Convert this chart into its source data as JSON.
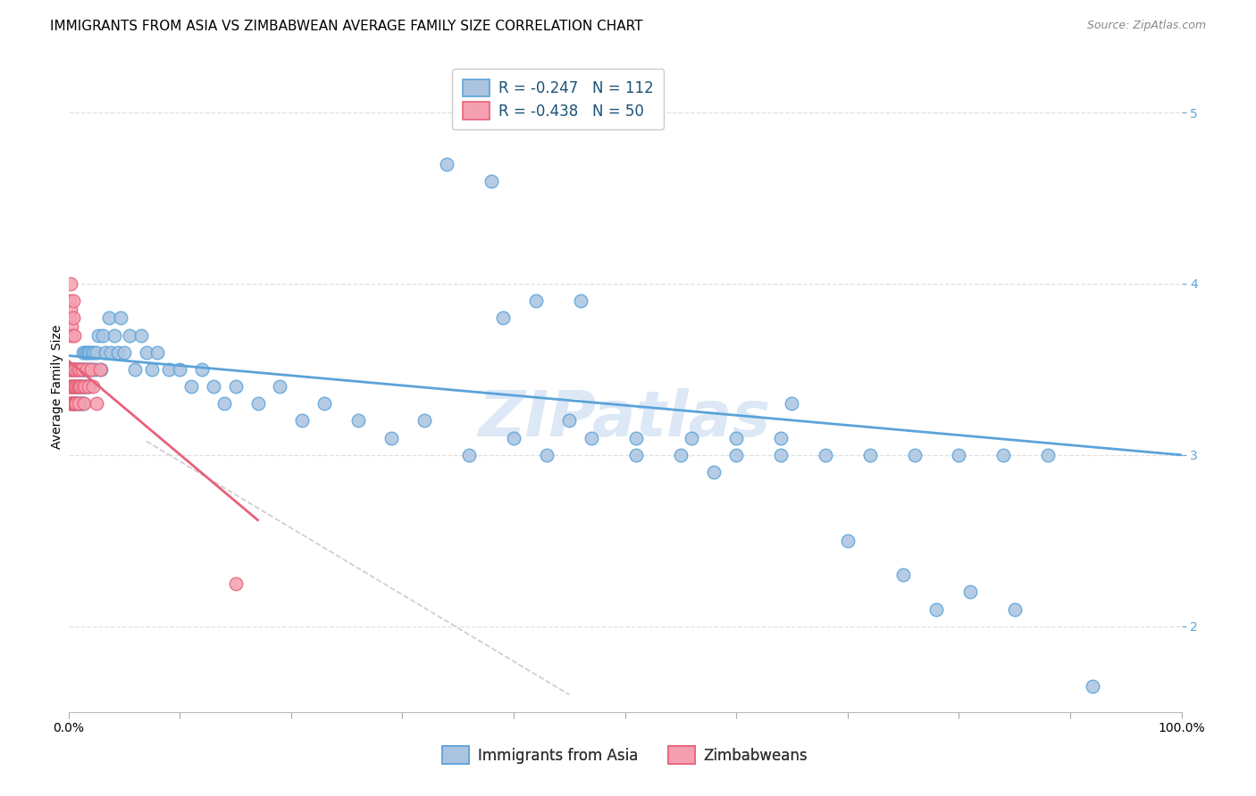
{
  "title": "IMMIGRANTS FROM ASIA VS ZIMBABWEAN AVERAGE FAMILY SIZE CORRELATION CHART",
  "source": "Source: ZipAtlas.com",
  "ylabel": "Average Family Size",
  "xlim": [
    0.0,
    1.0
  ],
  "ylim": [
    1.5,
    5.3
  ],
  "yticks": [
    2.0,
    3.0,
    4.0,
    5.0
  ],
  "xticks": [
    0.0,
    0.1,
    0.2,
    0.3,
    0.4,
    0.5,
    0.6,
    0.7,
    0.8,
    0.9,
    1.0
  ],
  "blue_scatter_x": [
    0.002,
    0.003,
    0.003,
    0.004,
    0.004,
    0.005,
    0.005,
    0.005,
    0.006,
    0.006,
    0.006,
    0.007,
    0.007,
    0.007,
    0.008,
    0.008,
    0.008,
    0.009,
    0.009,
    0.009,
    0.01,
    0.01,
    0.01,
    0.011,
    0.011,
    0.012,
    0.012,
    0.012,
    0.013,
    0.013,
    0.013,
    0.014,
    0.014,
    0.015,
    0.015,
    0.015,
    0.016,
    0.016,
    0.017,
    0.017,
    0.018,
    0.018,
    0.019,
    0.019,
    0.02,
    0.021,
    0.022,
    0.023,
    0.024,
    0.025,
    0.027,
    0.029,
    0.031,
    0.033,
    0.036,
    0.038,
    0.041,
    0.044,
    0.047,
    0.05,
    0.055,
    0.06,
    0.065,
    0.07,
    0.075,
    0.08,
    0.09,
    0.1,
    0.11,
    0.12,
    0.13,
    0.14,
    0.15,
    0.17,
    0.19,
    0.21,
    0.23,
    0.26,
    0.29,
    0.32,
    0.36,
    0.4,
    0.43,
    0.47,
    0.51,
    0.55,
    0.6,
    0.64,
    0.68,
    0.72,
    0.76,
    0.8,
    0.84,
    0.88,
    0.45,
    0.51,
    0.56,
    0.6,
    0.38,
    0.42,
    0.64,
    0.92,
    0.46,
    0.34,
    0.39,
    0.78,
    0.85,
    0.7,
    0.75,
    0.81,
    0.65,
    0.58
  ],
  "blue_scatter_y": [
    3.4,
    3.5,
    3.3,
    3.4,
    3.5,
    3.3,
    3.4,
    3.5,
    3.3,
    3.4,
    3.5,
    3.3,
    3.4,
    3.5,
    3.3,
    3.4,
    3.5,
    3.3,
    3.4,
    3.5,
    3.3,
    3.4,
    3.5,
    3.3,
    3.4,
    3.5,
    3.3,
    3.4,
    3.5,
    3.3,
    3.6,
    3.4,
    3.5,
    3.4,
    3.6,
    3.5,
    3.4,
    3.6,
    3.5,
    3.4,
    3.6,
    3.5,
    3.4,
    3.6,
    3.5,
    3.6,
    3.5,
    3.6,
    3.5,
    3.6,
    3.7,
    3.5,
    3.7,
    3.6,
    3.8,
    3.6,
    3.7,
    3.6,
    3.8,
    3.6,
    3.7,
    3.5,
    3.7,
    3.6,
    3.5,
    3.6,
    3.5,
    3.5,
    3.4,
    3.5,
    3.4,
    3.3,
    3.4,
    3.3,
    3.4,
    3.2,
    3.3,
    3.2,
    3.1,
    3.2,
    3.0,
    3.1,
    3.0,
    3.1,
    3.1,
    3.0,
    3.1,
    3.0,
    3.0,
    3.0,
    3.0,
    3.0,
    3.0,
    3.0,
    3.2,
    3.0,
    3.1,
    3.0,
    4.6,
    3.9,
    3.1,
    1.65,
    3.9,
    4.7,
    3.8,
    2.1,
    2.1,
    2.5,
    2.3,
    2.2,
    3.3,
    2.9
  ],
  "pink_scatter_x": [
    0.001,
    0.001,
    0.001,
    0.001,
    0.002,
    0.002,
    0.002,
    0.002,
    0.003,
    0.003,
    0.003,
    0.003,
    0.004,
    0.004,
    0.004,
    0.005,
    0.005,
    0.005,
    0.006,
    0.006,
    0.006,
    0.007,
    0.007,
    0.008,
    0.008,
    0.009,
    0.009,
    0.01,
    0.01,
    0.011,
    0.012,
    0.013,
    0.014,
    0.015,
    0.016,
    0.018,
    0.02,
    0.022,
    0.025,
    0.028,
    0.001,
    0.001,
    0.002,
    0.002,
    0.003,
    0.003,
    0.004,
    0.004,
    0.005,
    0.15
  ],
  "pink_scatter_y": [
    3.4,
    3.5,
    3.3,
    3.5,
    3.4,
    3.3,
    3.5,
    3.4,
    3.3,
    3.5,
    3.4,
    3.3,
    3.5,
    3.4,
    3.3,
    3.4,
    3.5,
    3.3,
    3.4,
    3.5,
    3.3,
    3.4,
    3.3,
    3.4,
    3.5,
    3.4,
    3.3,
    3.4,
    3.5,
    3.4,
    3.5,
    3.4,
    3.3,
    3.4,
    3.5,
    3.4,
    3.5,
    3.4,
    3.3,
    3.5,
    3.9,
    3.8,
    4.0,
    3.85,
    3.75,
    3.7,
    3.9,
    3.8,
    3.7,
    2.25
  ],
  "blue_line_x": [
    0.0,
    1.0
  ],
  "blue_line_y": [
    3.58,
    3.0
  ],
  "pink_line_x": [
    0.0,
    0.17
  ],
  "pink_line_y": [
    3.55,
    2.62
  ],
  "dashed_line_x": [
    0.07,
    0.45
  ],
  "dashed_line_y": [
    3.08,
    1.6
  ],
  "blue_color": "#5ba3d9",
  "pink_color": "#e8607a",
  "blue_fill": "#aac4e0",
  "pink_fill": "#f5a0b0",
  "dashed_color": "#cccccc",
  "background_color": "#ffffff",
  "grid_color": "#e0e0e0",
  "title_fontsize": 11,
  "source_fontsize": 9,
  "axis_label_fontsize": 10,
  "tick_label_fontsize": 10,
  "legend_fontsize": 12,
  "watermark": "ZIPatlas",
  "watermark_color": "#dce8f5",
  "watermark_fontsize": 52,
  "legend_blue_label": "R = -0.247   N = 112",
  "legend_pink_label": "R = -0.438   N = 50",
  "legend_bottom_blue": "Immigrants from Asia",
  "legend_bottom_pink": "Zimbabweans"
}
